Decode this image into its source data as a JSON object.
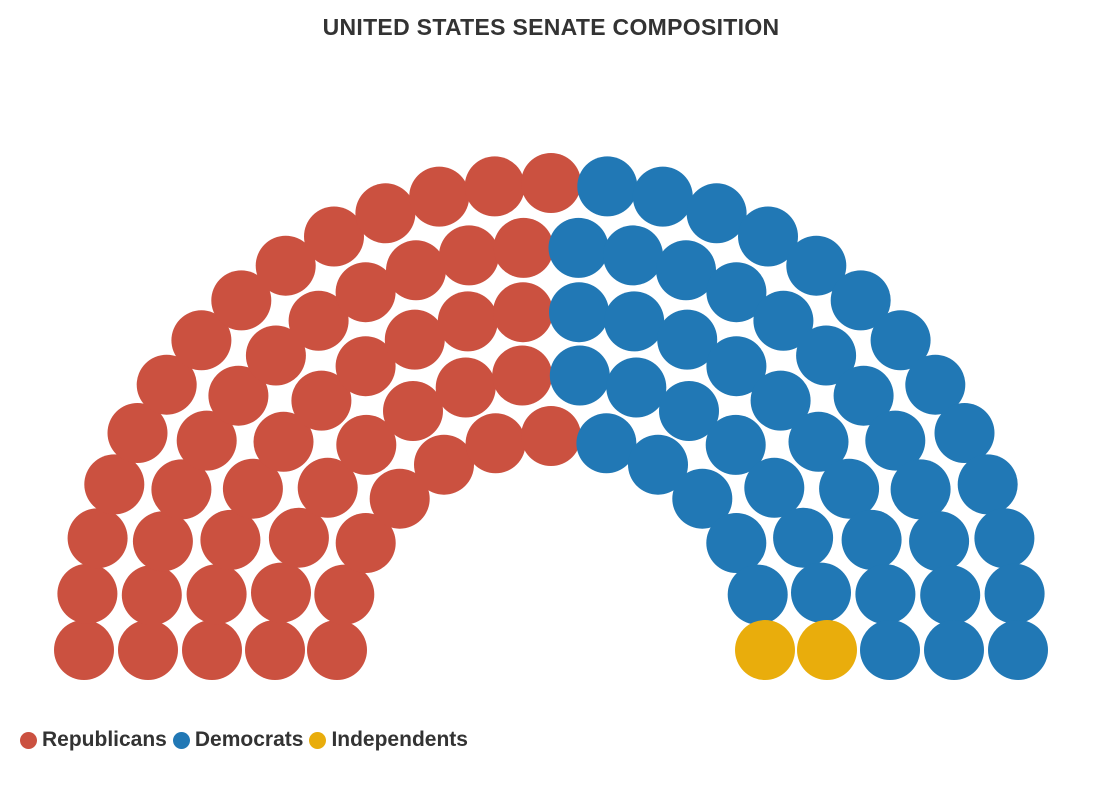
{
  "chart_data": {
    "type": "parliament",
    "title": "UNITED STATES SENATE COMPOSITION",
    "total_seats": 100,
    "series": [
      {
        "name": "Republicans",
        "values": [
          51
        ],
        "color": "#cb5140"
      },
      {
        "name": "Democrats",
        "values": [
          47
        ],
        "color": "#2178b5"
      },
      {
        "name": "Independents",
        "values": [
          2
        ],
        "color": "#e9ad0c"
      }
    ],
    "legend_placement": "bottom-left"
  }
}
